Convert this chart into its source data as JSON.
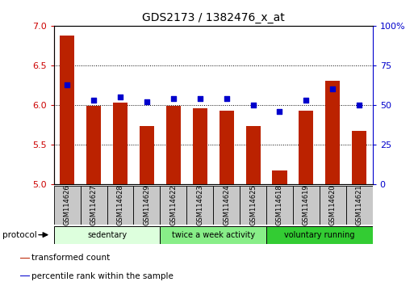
{
  "title": "GDS2173 / 1382476_x_at",
  "samples": [
    "GSM114626",
    "GSM114627",
    "GSM114628",
    "GSM114629",
    "GSM114622",
    "GSM114623",
    "GSM114624",
    "GSM114625",
    "GSM114618",
    "GSM114619",
    "GSM114620",
    "GSM114621"
  ],
  "transformed_count": [
    6.88,
    5.99,
    6.03,
    5.74,
    5.99,
    5.96,
    5.93,
    5.74,
    5.18,
    5.93,
    6.31,
    5.68
  ],
  "percentile_rank": [
    63,
    53,
    55,
    52,
    54,
    54,
    54,
    50,
    46,
    53,
    60,
    50
  ],
  "ylim_left": [
    5.0,
    7.0
  ],
  "ylim_right": [
    0,
    100
  ],
  "yticks_left": [
    5.0,
    5.5,
    6.0,
    6.5,
    7.0
  ],
  "yticks_right": [
    0,
    25,
    50,
    75,
    100
  ],
  "bar_color": "#BB2200",
  "dot_color": "#0000CC",
  "protocol_groups": [
    {
      "label": "sedentary",
      "start": 0,
      "end": 4,
      "color": "#DDFFDD"
    },
    {
      "label": "twice a week activity",
      "start": 4,
      "end": 8,
      "color": "#88EE88"
    },
    {
      "label": "voluntary running",
      "start": 8,
      "end": 12,
      "color": "#33CC33"
    }
  ],
  "left_tick_color": "#CC0000",
  "right_tick_color": "#0000CC",
  "protocol_label": "protocol",
  "legend_items": [
    {
      "label": "transformed count",
      "color": "#BB2200"
    },
    {
      "label": "percentile rank within the sample",
      "color": "#0000CC"
    }
  ],
  "tick_area_color": "#C8C8C8"
}
